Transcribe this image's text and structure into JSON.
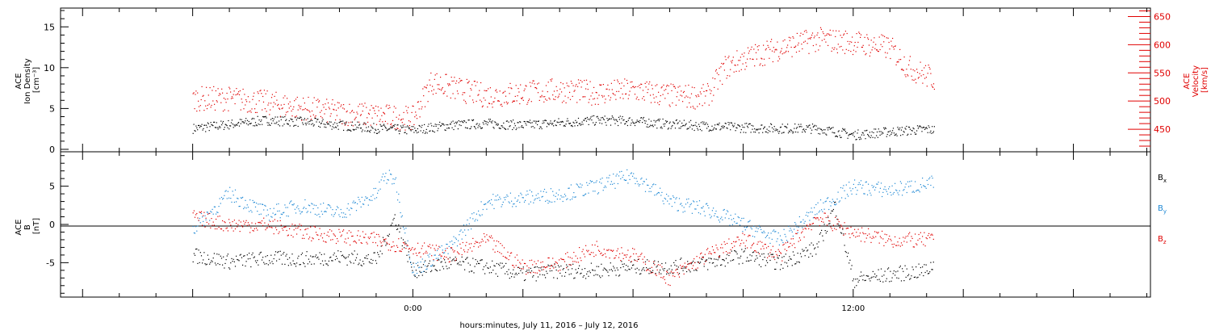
{
  "chart_data": [
    {
      "type": "scatter",
      "panel": "top",
      "ylabel_left": [
        "ACE",
        "Ion Density",
        "[cm⁻³]"
      ],
      "ylabel_right": [
        "ACE",
        "Velocity",
        "[km/s]"
      ],
      "yticks_left": [
        "0",
        "5",
        "10",
        "15"
      ],
      "yticks_right": [
        "450",
        "500",
        "550",
        "600",
        "650"
      ],
      "ylim_left": [
        -0.3,
        17.3
      ],
      "ylim_right": [
        410,
        665
      ],
      "series": [
        {
          "name": "Ion Density",
          "color": "#000000",
          "axis": "left",
          "x": [
            -6.0,
            -5.0,
            -4.0,
            -3.0,
            -2.0,
            -1.0,
            0.0,
            1.0,
            2.0,
            3.0,
            4.0,
            5.0,
            6.0,
            7.0,
            8.0,
            9.0,
            10.0,
            11.0,
            12.0,
            13.0,
            14.0,
            14.2
          ],
          "values": [
            2.6,
            3.1,
            3.6,
            3.4,
            3.0,
            2.6,
            2.4,
            3.0,
            3.2,
            3.0,
            3.3,
            3.6,
            3.5,
            3.1,
            2.9,
            2.7,
            2.6,
            2.6,
            1.8,
            2.2,
            2.5,
            2.4
          ]
        },
        {
          "name": "Velocity",
          "color": "#e00000",
          "axis": "right",
          "x": [
            -6.0,
            -5.0,
            -4.0,
            -3.0,
            -2.0,
            -1.0,
            0.0,
            0.5,
            1.0,
            2.0,
            3.0,
            4.0,
            5.0,
            6.0,
            7.0,
            8.0,
            8.5,
            9.0,
            10.0,
            11.0,
            12.0,
            13.0,
            13.5,
            14.2
          ],
          "values": [
            505,
            505,
            498,
            488,
            480,
            475,
            470,
            535,
            525,
            510,
            515,
            520,
            515,
            520,
            510,
            508,
            560,
            575,
            595,
            610,
            605,
            595,
            560,
            540
          ]
        }
      ]
    },
    {
      "type": "scatter",
      "panel": "bottom",
      "ylabel_left": [
        "ACE",
        "B",
        "[nT]"
      ],
      "yticks_left": [
        "-5",
        "0",
        "5"
      ],
      "ylim_left": [
        -9.5,
        9.5
      ],
      "legend_position": "right",
      "series": [
        {
          "name": "Bₓ",
          "color": "#000000",
          "x": [
            -6.0,
            -5.0,
            -4.0,
            -3.0,
            -2.0,
            -1.0,
            -0.5,
            0.0,
            1.0,
            2.0,
            3.0,
            4.0,
            5.0,
            6.0,
            7.0,
            8.0,
            9.0,
            10.0,
            11.0,
            11.5,
            12.0,
            13.0,
            14.0,
            14.2
          ],
          "values": [
            -4.0,
            -4.8,
            -4.4,
            -4.5,
            -4.2,
            -4.6,
            1.0,
            -6.0,
            -5.0,
            -5.5,
            -6.5,
            -6.0,
            -6.0,
            -5.5,
            -5.5,
            -5.0,
            -4.0,
            -5.0,
            -3.0,
            2.5,
            -7.2,
            -6.5,
            -6.0,
            -5.0
          ]
        },
        {
          "name": "Bᵧ",
          "color": "#1e88d4",
          "x": [
            -6.0,
            -5.0,
            -4.0,
            -3.0,
            -2.0,
            -1.0,
            -0.8,
            -0.5,
            0.0,
            1.0,
            2.0,
            3.0,
            4.0,
            5.0,
            6.0,
            7.0,
            8.0,
            9.0,
            10.0,
            11.0,
            12.0,
            13.0,
            14.2
          ],
          "values": [
            -0.5,
            4.0,
            1.5,
            2.5,
            1.5,
            4.0,
            6.3,
            6.0,
            -6.0,
            -3.0,
            3.0,
            3.5,
            4.0,
            5.0,
            6.5,
            3.0,
            2.0,
            0.0,
            -2.0,
            2.0,
            5.0,
            4.5,
            5.5
          ]
        },
        {
          "name": "Bᵩ",
          "color": "#e00000",
          "x": [
            -6.0,
            -5.0,
            -4.0,
            -3.0,
            -2.0,
            -1.0,
            0.0,
            1.0,
            2.0,
            3.0,
            4.0,
            5.0,
            6.0,
            7.0,
            8.0,
            9.0,
            10.0,
            11.0,
            12.0,
            13.0,
            14.2
          ],
          "values": [
            1.0,
            0.0,
            0.0,
            -1.0,
            -1.5,
            -2.0,
            -3.0,
            -4.0,
            -2.0,
            -5.5,
            -5.0,
            -3.0,
            -4.0,
            -7.0,
            -4.0,
            -2.0,
            -4.0,
            1.0,
            -1.0,
            -2.0,
            -2.0
          ]
        }
      ]
    }
  ],
  "x_axis": {
    "ticks": [
      {
        "value": 0,
        "label": "0:00"
      },
      {
        "value": 12,
        "label": "12:00"
      }
    ],
    "xlim": [
      -9.6,
      20.1
    ],
    "xlabel": "hours:minutes, July 11, 2016 – July 12, 2016"
  },
  "legend": [
    {
      "main": "B",
      "sub": "x",
      "color": "#000000"
    },
    {
      "main": "B",
      "sub": "y",
      "color": "#1e88d4"
    },
    {
      "main": "B",
      "sub": "z",
      "color": "#e00000"
    }
  ]
}
